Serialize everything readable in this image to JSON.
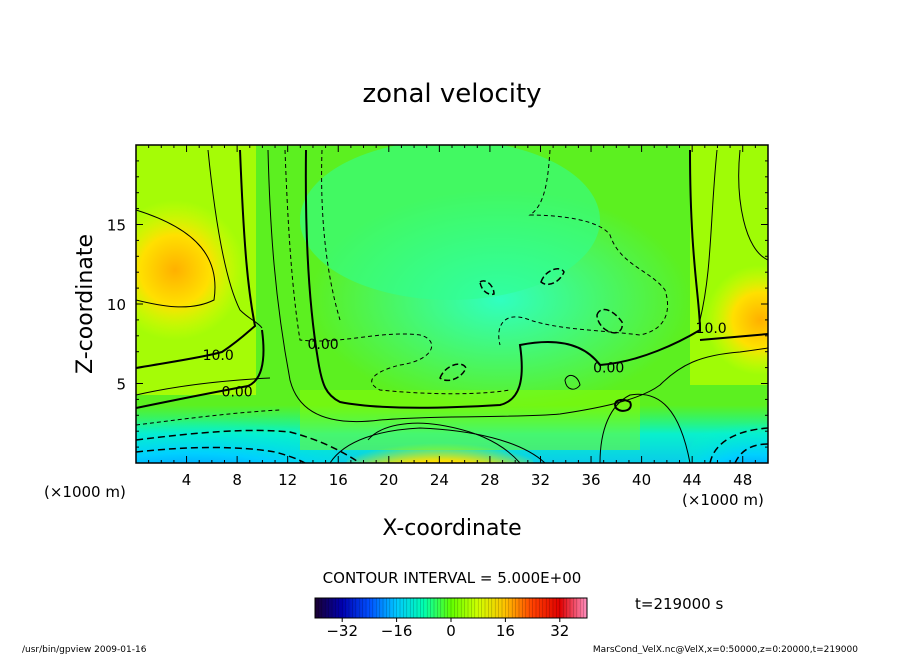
{
  "chart_data": {
    "type": "heatmap",
    "title": "zonal velocity",
    "xlabel": "X-coordinate",
    "ylabel": "Z-coordinate",
    "x_unit": "(×1000 m)",
    "y_unit": "(×1000 m)",
    "xlim": [
      0,
      50
    ],
    "ylim": [
      0,
      20
    ],
    "x_ticks": [
      4,
      8,
      12,
      16,
      20,
      24,
      28,
      32,
      36,
      40,
      44,
      48
    ],
    "y_ticks": [
      5,
      10,
      15
    ],
    "contour_interval_text": "CONTOUR INTERVAL = 5.000E+00",
    "contour_labels": [
      {
        "text": "10.0",
        "x": 6.5,
        "y": 6.8
      },
      {
        "text": "0.00",
        "x": 8.0,
        "y": 4.5
      },
      {
        "text": "0.00",
        "x": 14.8,
        "y": 7.5
      },
      {
        "text": "0.00",
        "x": 37.4,
        "y": 6.0
      },
      {
        "text": "10.0",
        "x": 45.5,
        "y": 8.5
      }
    ],
    "colorbar": {
      "range": [
        -40,
        40
      ],
      "ticks": [
        -32,
        -16,
        0,
        16,
        32
      ],
      "colors": [
        "#1a0030",
        "#0000b0",
        "#0050ff",
        "#00c8ff",
        "#00ffb0",
        "#60ff00",
        "#d0ff00",
        "#ffc000",
        "#ff4000",
        "#e00000",
        "#ff90c0"
      ]
    },
    "time_label": "t=219000 s",
    "colormap_note": "rainbow: negative blue, zero green, positive red"
  },
  "footer": {
    "left": "/usr/bin/gpview   2009-01-16",
    "right": "MarsCond_VelX.nc@VelX,x=0:50000,z=0:20000,t=219000"
  }
}
